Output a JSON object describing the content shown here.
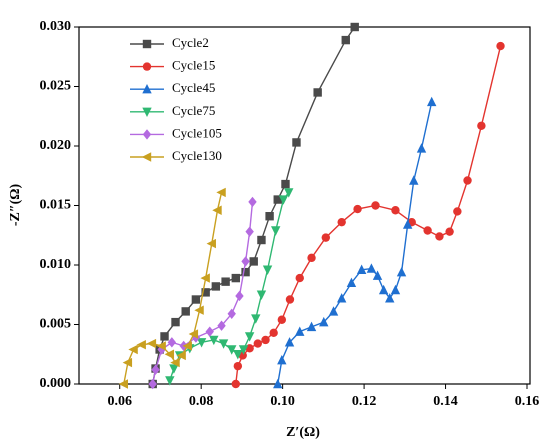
{
  "chart_data": {
    "type": "line",
    "x_label": "Z′(Ω)",
    "y_label": "-Z″(Ω)",
    "xlim": [
      0.05,
      0.16
    ],
    "ylim": [
      0,
      0.03
    ],
    "xticks": [
      0.06,
      0.08,
      {
        "value": 0.1,
        "label": "0.10"
      },
      0.12,
      0.14,
      0.16
    ],
    "yticks": [
      {
        "value": 0,
        "label": "0.000"
      },
      {
        "value": 0.005,
        "label": "0.005"
      },
      {
        "value": 0.01,
        "label": "0.010"
      },
      {
        "value": 0.015,
        "label": "0.015"
      },
      {
        "value": 0.02,
        "label": "0.020"
      },
      {
        "value": 0.025,
        "label": "0.025"
      },
      {
        "value": 0.03,
        "label": "0.030"
      }
    ],
    "legend": "upper left",
    "series": [
      {
        "name": "Cycle2",
        "color": "#4a4a4a",
        "marker": "square",
        "x": [
          0.0681,
          0.0688,
          0.0698,
          0.071,
          0.0737,
          0.0762,
          0.0787,
          0.0811,
          0.0836,
          0.086,
          0.0885,
          0.0909,
          0.0929,
          0.0948,
          0.0968,
          0.0988,
          0.1007,
          0.1034,
          0.1086,
          0.1155,
          0.1177
        ],
        "values": [
          0,
          0.0013,
          0.0029,
          0.004,
          0.0052,
          0.0061,
          0.0071,
          0.0077,
          0.0082,
          0.0086,
          0.0089,
          0.0094,
          0.0103,
          0.0121,
          0.0141,
          0.0155,
          0.0168,
          0.0203,
          0.0245,
          0.0289,
          0.03
        ]
      },
      {
        "name": "Cycle15",
        "color": "#e3342f",
        "marker": "circle",
        "x": [
          0.0885,
          0.089,
          0.0902,
          0.0919,
          0.0939,
          0.0958,
          0.0978,
          0.0998,
          0.1018,
          0.1042,
          0.1071,
          0.1106,
          0.1145,
          0.1184,
          0.1228,
          0.1277,
          0.1317,
          0.1356,
          0.1385,
          0.141,
          0.1429,
          0.1454,
          0.1488,
          0.1535
        ],
        "values": [
          0,
          0.0015,
          0.0024,
          0.003,
          0.0034,
          0.0037,
          0.0043,
          0.0054,
          0.0071,
          0.0089,
          0.0106,
          0.0123,
          0.0136,
          0.0147,
          0.015,
          0.0146,
          0.0136,
          0.0129,
          0.0124,
          0.0128,
          0.0145,
          0.0171,
          0.0217,
          0.0284
        ]
      },
      {
        "name": "Cycle45",
        "color": "#1f6fd0",
        "marker": "triangle-up",
        "x": [
          0.0988,
          0.0998,
          0.1017,
          0.1042,
          0.1071,
          0.1101,
          0.1125,
          0.1145,
          0.1169,
          0.1194,
          0.1218,
          0.1233,
          0.1248,
          0.1263,
          0.1277,
          0.1292,
          0.1307,
          0.1322,
          0.1341,
          0.1366
        ],
        "values": [
          0,
          0.002,
          0.0035,
          0.0044,
          0.0048,
          0.0052,
          0.0061,
          0.0072,
          0.0085,
          0.0096,
          0.0097,
          0.0091,
          0.0079,
          0.0072,
          0.0079,
          0.0094,
          0.0134,
          0.0171,
          0.0198,
          0.0237
        ]
      },
      {
        "name": "Cycle75",
        "color": "#2fb872",
        "marker": "triangle-down",
        "x": [
          0.0723,
          0.0733,
          0.0747,
          0.0772,
          0.0801,
          0.0831,
          0.0855,
          0.0875,
          0.089,
          0.0904,
          0.0919,
          0.0934,
          0.0948,
          0.0963,
          0.0983,
          0.1002,
          0.1015
        ],
        "values": [
          0.0003,
          0.0013,
          0.0024,
          0.003,
          0.0035,
          0.0037,
          0.0034,
          0.0029,
          0.0025,
          0.0029,
          0.004,
          0.0055,
          0.0075,
          0.0096,
          0.0129,
          0.0155,
          0.0161
        ]
      },
      {
        "name": "Cycle105",
        "color": "#b46ae0",
        "marker": "diamond",
        "x": [
          0.0681,
          0.0688,
          0.0703,
          0.0728,
          0.0757,
          0.0787,
          0.0821,
          0.085,
          0.0875,
          0.0894,
          0.0909,
          0.0919,
          0.0926
        ],
        "values": [
          0,
          0.0012,
          0.0029,
          0.0035,
          0.0032,
          0.0039,
          0.0044,
          0.0049,
          0.0059,
          0.0074,
          0.0103,
          0.0128,
          0.0153
        ]
      },
      {
        "name": "Cycle130",
        "color": "#c9a020",
        "marker": "triangle-left",
        "x": [
          0.061,
          0.062,
          0.0634,
          0.0654,
          0.0679,
          0.0703,
          0.0723,
          0.0737,
          0.0752,
          0.0767,
          0.0782,
          0.0796,
          0.0811,
          0.0826,
          0.084,
          0.085
        ],
        "values": [
          0,
          0.0018,
          0.0029,
          0.0033,
          0.0034,
          0.0032,
          0.0025,
          0.0018,
          0.0024,
          0.0032,
          0.0042,
          0.0062,
          0.0089,
          0.0118,
          0.0146,
          0.0161
        ]
      }
    ]
  }
}
